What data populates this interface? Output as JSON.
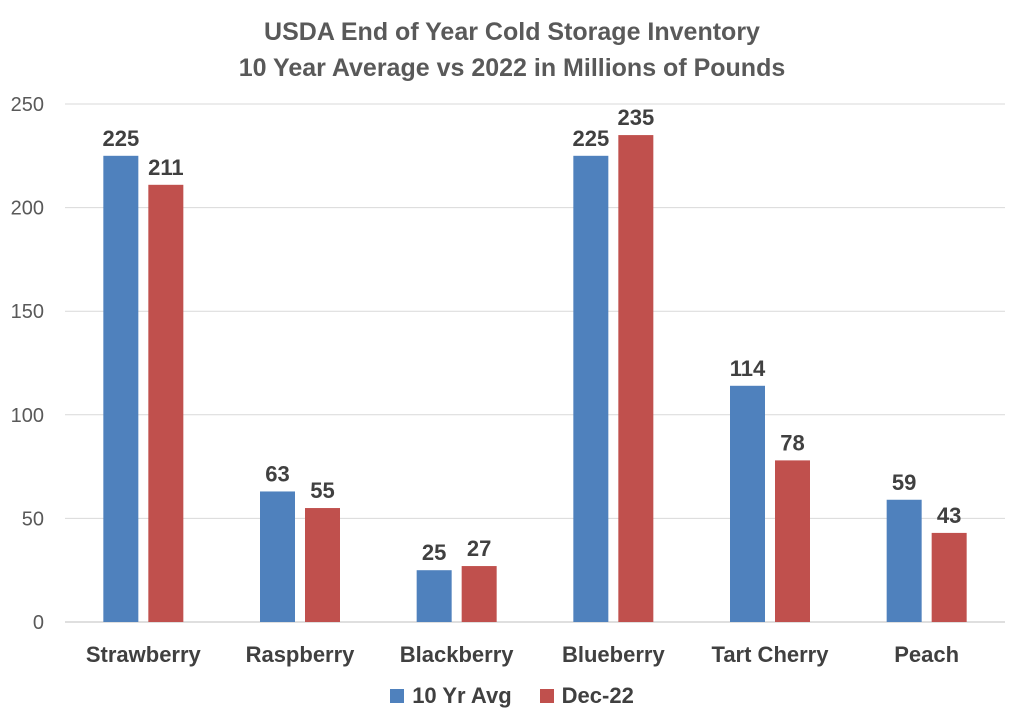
{
  "chart_data": {
    "type": "bar",
    "title_line1": "USDA End of Year Cold Storage Inventory",
    "title_line2": "10 Year Average vs 2022 in Millions of Pounds",
    "categories": [
      "Strawberry",
      "Raspberry",
      "Blackberry",
      "Blueberry",
      "Tart Cherry",
      "Peach"
    ],
    "series": [
      {
        "name": "10 Yr Avg",
        "values": [
          225,
          63,
          25,
          225,
          114,
          59
        ],
        "color": "#4f81bd"
      },
      {
        "name": "Dec-22",
        "values": [
          211,
          55,
          27,
          235,
          78,
          43
        ],
        "color": "#c0504d"
      }
    ],
    "ylim": [
      0,
      250
    ],
    "yticks": [
      0,
      50,
      100,
      150,
      200,
      250
    ],
    "grid": true,
    "legend_position": "bottom"
  }
}
